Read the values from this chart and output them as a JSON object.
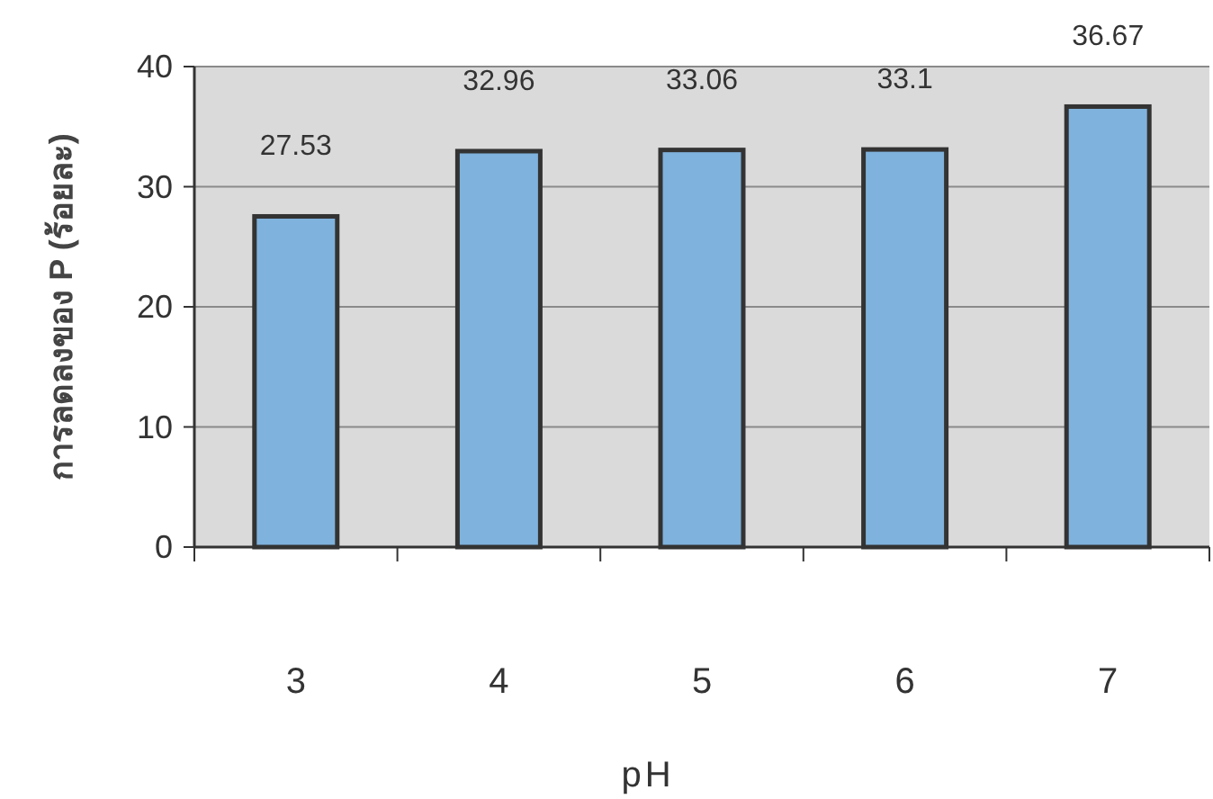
{
  "chart_data": {
    "type": "bar",
    "xlabel": "pH",
    "ylabel": "การลดลงของ P (ร้อยละ)",
    "categories": [
      "3",
      "4",
      "5",
      "6",
      "7"
    ],
    "values": [
      27.53,
      32.96,
      33.06,
      33.1,
      36.67
    ],
    "color": "#7fb2dc",
    "ylim": [
      0,
      40
    ],
    "yticks": [
      0,
      10,
      20,
      30,
      40
    ],
    "grid": "y",
    "data_labels": true
  }
}
